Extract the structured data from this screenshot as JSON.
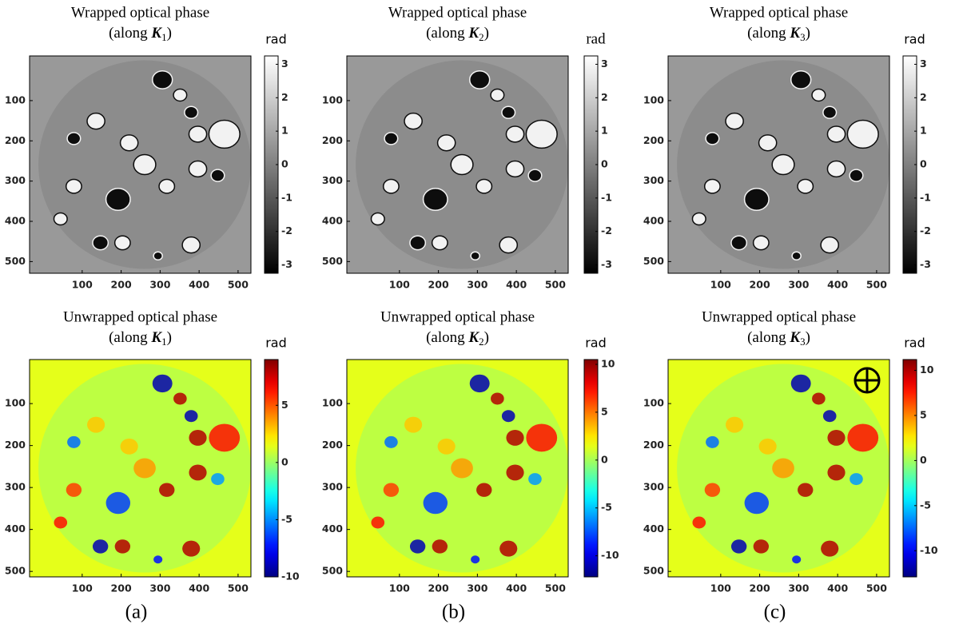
{
  "chart_data": [
    {
      "type": "heatmap",
      "title": "Wrapped optical phase",
      "subtitle": [
        "(along ",
        "K",
        "1",
        ")"
      ],
      "colormap": "gray",
      "xlim": [
        -35,
        533
      ],
      "xticks": [
        100,
        200,
        300,
        400,
        500
      ],
      "ylim": [
        -11,
        529
      ],
      "yticks": [
        100,
        200,
        300,
        400,
        500
      ],
      "colorbar": {
        "label": "rad",
        "lim": [
          -3.25,
          3.25
        ],
        "ticks": [
          3,
          2,
          1,
          0,
          -1,
          -2,
          -3
        ]
      }
    },
    {
      "type": "heatmap",
      "title": "Wrapped optical phase",
      "subtitle": [
        "(along ",
        "K",
        "2",
        ")"
      ],
      "colormap": "gray",
      "xlim": [
        -35,
        533
      ],
      "xticks": [
        100,
        200,
        300,
        400,
        500
      ],
      "ylim": [
        -11,
        529
      ],
      "yticks": [
        100,
        200,
        300,
        400,
        500
      ],
      "colorbar": {
        "label": "rad",
        "lim": [
          -3.25,
          3.25
        ],
        "ticks": [
          3,
          2,
          1,
          0,
          -1,
          -2,
          -3
        ]
      }
    },
    {
      "type": "heatmap",
      "title": "Wrapped optical phase",
      "subtitle": [
        "(along ",
        "K",
        "3",
        ")"
      ],
      "colormap": "gray",
      "xlim": [
        -35,
        533
      ],
      "xticks": [
        100,
        200,
        300,
        400,
        500
      ],
      "ylim": [
        -11,
        529
      ],
      "yticks": [
        100,
        200,
        300,
        400,
        500
      ],
      "colorbar": {
        "label": "rad",
        "lim": [
          -3.25,
          3.25
        ],
        "ticks": [
          3,
          2,
          1,
          0,
          -1,
          -2,
          -3
        ]
      }
    },
    {
      "type": "heatmap",
      "title": "Unwrapped optical phase",
      "subtitle": [
        "(along ",
        "K",
        "1",
        ")"
      ],
      "colormap": "jet",
      "xlim": [
        -35,
        533
      ],
      "xticks": [
        100,
        200,
        300,
        400,
        500
      ],
      "ylim": [
        -5,
        513
      ],
      "yticks": [
        100,
        200,
        300,
        400,
        500
      ],
      "colorbar": {
        "label": "rad",
        "lim": [
          -10,
          9
        ],
        "ticks": [
          5,
          0,
          -5,
          -10
        ]
      }
    },
    {
      "type": "heatmap",
      "title": "Unwrapped optical phase",
      "subtitle": [
        "(along ",
        "K",
        "2",
        ")"
      ],
      "colormap": "jet",
      "xlim": [
        -35,
        533
      ],
      "xticks": [
        100,
        200,
        300,
        400,
        500
      ],
      "ylim": [
        -5,
        513
      ],
      "yticks": [
        100,
        200,
        300,
        400,
        500
      ],
      "colorbar": {
        "label": "rad",
        "lim": [
          -12.2,
          10.5
        ],
        "ticks": [
          10,
          5,
          0,
          -5,
          -10
        ]
      }
    },
    {
      "type": "heatmap",
      "title": "Unwrapped optical phase",
      "subtitle": [
        "(along ",
        "K",
        "3",
        ")"
      ],
      "colormap": "jet",
      "xlim": [
        -35,
        533
      ],
      "xticks": [
        100,
        200,
        300,
        400,
        500
      ],
      "ylim": [
        -5,
        513
      ],
      "yticks": [
        100,
        200,
        300,
        400,
        500
      ],
      "colorbar": {
        "label": "rad",
        "lim": [
          -12.9,
          11.2
        ],
        "ticks": [
          10,
          5,
          0,
          -5,
          -10
        ]
      }
    }
  ],
  "figure": {
    "panel_labels": [
      "(a)",
      "(b)",
      "(c)"
    ]
  }
}
